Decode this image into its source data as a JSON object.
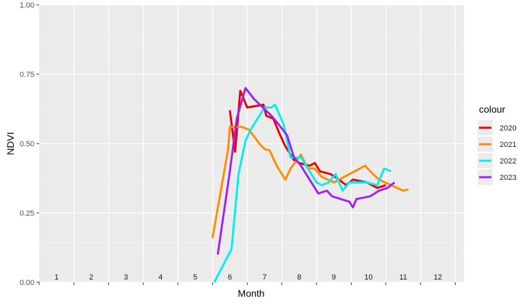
{
  "chart_data": {
    "type": "line",
    "xlabel": "Month",
    "ylabel": "NDVI",
    "xlim": [
      0.5,
      12.75
    ],
    "ylim": [
      0,
      1
    ],
    "x_tick_labels": [
      "1",
      "2",
      "3",
      "4",
      "5",
      "6",
      "7",
      "8",
      "9",
      "10",
      "11",
      "12"
    ],
    "y_ticks": [
      0,
      0.25,
      0.5,
      0.75,
      1
    ],
    "y_tick_labels": [
      "0.00",
      "0.25",
      "0.50",
      "0.75",
      "1.00"
    ],
    "grid": true,
    "legend_title": "colour",
    "legend_position": "right",
    "series": [
      {
        "name": "2020",
        "color": "#ee0000",
        "points": [
          [
            6.0,
            0.62
          ],
          [
            6.15,
            0.47
          ],
          [
            6.3,
            0.69
          ],
          [
            6.5,
            0.63
          ],
          [
            6.97,
            0.64
          ],
          [
            7.05,
            0.6
          ],
          [
            7.25,
            0.59
          ],
          [
            7.45,
            0.53
          ],
          [
            7.6,
            0.49
          ],
          [
            7.85,
            0.44
          ],
          [
            8.0,
            0.43
          ],
          [
            8.3,
            0.42
          ],
          [
            8.45,
            0.43
          ],
          [
            8.6,
            0.4
          ],
          [
            8.9,
            0.39
          ],
          [
            9.15,
            0.37
          ],
          [
            9.35,
            0.35
          ],
          [
            9.55,
            0.37
          ],
          [
            9.95,
            0.36
          ],
          [
            10.25,
            0.34
          ],
          [
            10.5,
            0.35
          ]
        ]
      },
      {
        "name": "2021",
        "color": "#ff8c00",
        "points": [
          [
            5.5,
            0.16
          ],
          [
            5.95,
            0.48
          ],
          [
            6.0,
            0.56
          ],
          [
            6.35,
            0.56
          ],
          [
            6.55,
            0.55
          ],
          [
            6.85,
            0.5
          ],
          [
            7.0,
            0.48
          ],
          [
            7.15,
            0.475
          ],
          [
            7.35,
            0.42
          ],
          [
            7.6,
            0.37
          ],
          [
            7.75,
            0.41
          ],
          [
            8.05,
            0.46
          ],
          [
            8.25,
            0.41
          ],
          [
            8.45,
            0.41
          ],
          [
            8.65,
            0.38
          ],
          [
            9.0,
            0.36
          ],
          [
            9.3,
            0.38
          ],
          [
            9.6,
            0.4
          ],
          [
            9.9,
            0.42
          ],
          [
            10.05,
            0.4
          ],
          [
            10.3,
            0.37
          ],
          [
            11.0,
            0.33
          ],
          [
            11.15,
            0.335
          ]
        ]
      },
      {
        "name": "2022",
        "color": "#00eeee",
        "points": [
          [
            5.55,
            0.0
          ],
          [
            6.05,
            0.12
          ],
          [
            6.25,
            0.39
          ],
          [
            6.45,
            0.51
          ],
          [
            6.6,
            0.55
          ],
          [
            7.0,
            0.63
          ],
          [
            7.2,
            0.63
          ],
          [
            7.3,
            0.64
          ],
          [
            7.55,
            0.57
          ],
          [
            7.75,
            0.45
          ],
          [
            7.9,
            0.45
          ],
          [
            8.05,
            0.45
          ],
          [
            8.3,
            0.4
          ],
          [
            8.5,
            0.36
          ],
          [
            8.65,
            0.35
          ],
          [
            8.85,
            0.36
          ],
          [
            9.05,
            0.39
          ],
          [
            9.25,
            0.33
          ],
          [
            9.45,
            0.36
          ],
          [
            9.95,
            0.36
          ],
          [
            10.25,
            0.35
          ],
          [
            10.45,
            0.41
          ],
          [
            10.65,
            0.4
          ]
        ]
      },
      {
        "name": "2023",
        "color": "#a020f0",
        "points": [
          [
            5.65,
            0.1
          ],
          [
            6.0,
            0.4
          ],
          [
            6.2,
            0.59
          ],
          [
            6.45,
            0.7
          ],
          [
            6.7,
            0.66
          ],
          [
            6.95,
            0.63
          ],
          [
            7.2,
            0.6
          ],
          [
            7.4,
            0.57
          ],
          [
            7.65,
            0.53
          ],
          [
            7.85,
            0.45
          ],
          [
            8.05,
            0.42
          ],
          [
            8.35,
            0.36
          ],
          [
            8.55,
            0.32
          ],
          [
            8.8,
            0.33
          ],
          [
            8.95,
            0.31
          ],
          [
            9.2,
            0.3
          ],
          [
            9.45,
            0.29
          ],
          [
            9.55,
            0.27
          ],
          [
            9.65,
            0.3
          ],
          [
            10.05,
            0.31
          ],
          [
            10.3,
            0.33
          ],
          [
            10.55,
            0.34
          ],
          [
            10.75,
            0.36
          ]
        ]
      }
    ]
  }
}
